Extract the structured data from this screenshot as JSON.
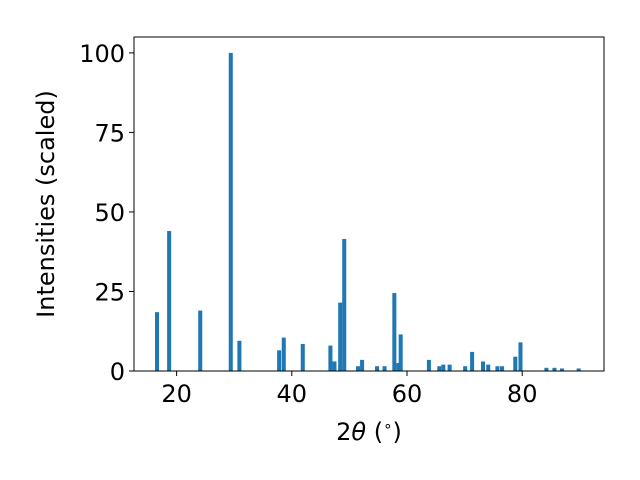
{
  "chart_data": {
    "type": "bar",
    "xlabel_prefix": "2",
    "xlabel_symbol": "θ",
    "xlabel_suffix": " (",
    "xlabel_unit": "∘",
    "xlabel_close": ")",
    "ylabel": "Intensities (scaled)",
    "xlim": [
      12.6,
      94.2
    ],
    "ylim": [
      0,
      105
    ],
    "xticks": [
      20,
      40,
      60,
      80
    ],
    "yticks": [
      0,
      25,
      50,
      75,
      100
    ],
    "grid": false,
    "bar_color": "#1f77b4",
    "bar_width": 0.7,
    "x": [
      16.6,
      18.7,
      24.1,
      29.4,
      30.9,
      37.8,
      38.6,
      41.9,
      46.7,
      47.4,
      48.4,
      49.1,
      51.5,
      52.2,
      54.8,
      56.1,
      57.8,
      58.5,
      58.9,
      63.8,
      65.6,
      66.3,
      67.4,
      70.1,
      71.3,
      73.2,
      74.1,
      75.7,
      76.5,
      78.8,
      79.7,
      84.2,
      85.6,
      86.9,
      89.8
    ],
    "values": [
      18.5,
      44,
      19,
      100,
      9.5,
      6.5,
      10.5,
      8.5,
      8,
      3,
      21.5,
      41.5,
      1.5,
      3.5,
      1.5,
      1.5,
      24.5,
      2.5,
      11.5,
      3.5,
      1.5,
      2,
      2,
      1.5,
      6,
      3,
      2,
      1.5,
      1.5,
      4.5,
      9,
      1,
      1,
      0.8,
      0.8
    ]
  }
}
